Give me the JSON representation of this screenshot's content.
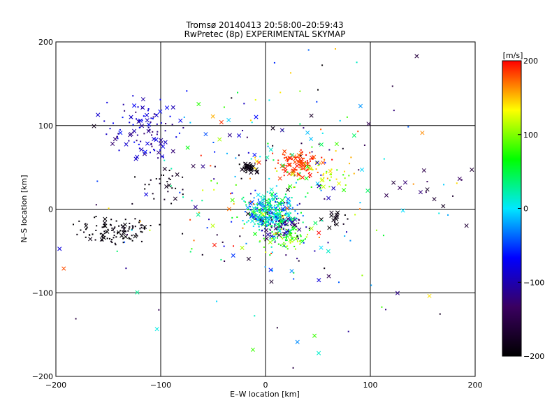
{
  "chart_data": {
    "type": "scatter",
    "title_line1": "Tromsø 20140413 20:58:00–20:59:43",
    "title_line2": "RwPretec (8p) EXPERIMENTAL SKYMAP",
    "xlabel": "E–W location [km]",
    "ylabel": "N–S location [km]",
    "xlim": [
      -200,
      200
    ],
    "ylim": [
      -200,
      200
    ],
    "xticks": [
      "−200",
      "−100",
      "0",
      "100",
      "200"
    ],
    "yticks": [
      "−200",
      "−100",
      "0",
      "100",
      "200"
    ],
    "grid_x": [
      -100,
      0,
      100
    ],
    "grid_y": [
      -100,
      0,
      100
    ],
    "colorbar": {
      "unit": "[m/s]",
      "min": -200,
      "max": 200,
      "ticks": [
        "200",
        "100",
        "0",
        "−100",
        "−200"
      ],
      "colors": [
        "#000000",
        "#3a0060",
        "#0000ff",
        "#00e8ff",
        "#00ff00",
        "#ffff00",
        "#ff0000"
      ]
    },
    "clusters": [
      {
        "cx": 5,
        "cy": -5,
        "sx": 12,
        "sy": 12,
        "vmin": -60,
        "vmax": 80,
        "n": 320,
        "xfrac": 0.25
      },
      {
        "cx": 30,
        "cy": 55,
        "sx": 10,
        "sy": 7,
        "vmin": 170,
        "vmax": 200,
        "n": 110,
        "xfrac": 0.3
      },
      {
        "cx": -17,
        "cy": 50,
        "sx": 4,
        "sy": 3,
        "vmin": -200,
        "vmax": -180,
        "n": 35,
        "xfrac": 0.6
      },
      {
        "cx": -145,
        "cy": -25,
        "sx": 18,
        "sy": 8,
        "vmin": -200,
        "vmax": -185,
        "n": 110,
        "xfrac": 0.1
      },
      {
        "cx": -115,
        "cy": 95,
        "sx": 18,
        "sy": 20,
        "vmin": -130,
        "vmax": -60,
        "n": 110,
        "xfrac": 0.3
      },
      {
        "cx": 15,
        "cy": -20,
        "sx": 10,
        "sy": 9,
        "vmin": -150,
        "vmax": -90,
        "n": 70,
        "xfrac": 0.3
      },
      {
        "cx": 20,
        "cy": -35,
        "sx": 10,
        "sy": 8,
        "vmin": 50,
        "vmax": 130,
        "n": 70,
        "xfrac": 0.2
      },
      {
        "cx": 50,
        "cy": 40,
        "sx": 15,
        "sy": 12,
        "vmin": 60,
        "vmax": 170,
        "n": 60,
        "xfrac": 0.2
      },
      {
        "cx": -95,
        "cy": 30,
        "sx": 12,
        "sy": 12,
        "vmin": -200,
        "vmax": -170,
        "n": 30,
        "xfrac": 0.3
      },
      {
        "cx": 65,
        "cy": -8,
        "sx": 5,
        "sy": 5,
        "vmin": -200,
        "vmax": -180,
        "n": 14,
        "xfrac": 0.7
      },
      {
        "cx": 0,
        "cy": 20,
        "sx": 45,
        "sy": 60,
        "vmin": -200,
        "vmax": 200,
        "n": 160,
        "xfrac": 0.25
      },
      {
        "cx": 0,
        "cy": 0,
        "sx": 95,
        "sy": 95,
        "vmin": -200,
        "vmax": 200,
        "n": 130,
        "xfrac": 0.4
      },
      {
        "cx": 150,
        "cy": 20,
        "sx": 25,
        "sy": 15,
        "vmin": -200,
        "vmax": -120,
        "n": 16,
        "xfrac": 0.5
      }
    ]
  }
}
